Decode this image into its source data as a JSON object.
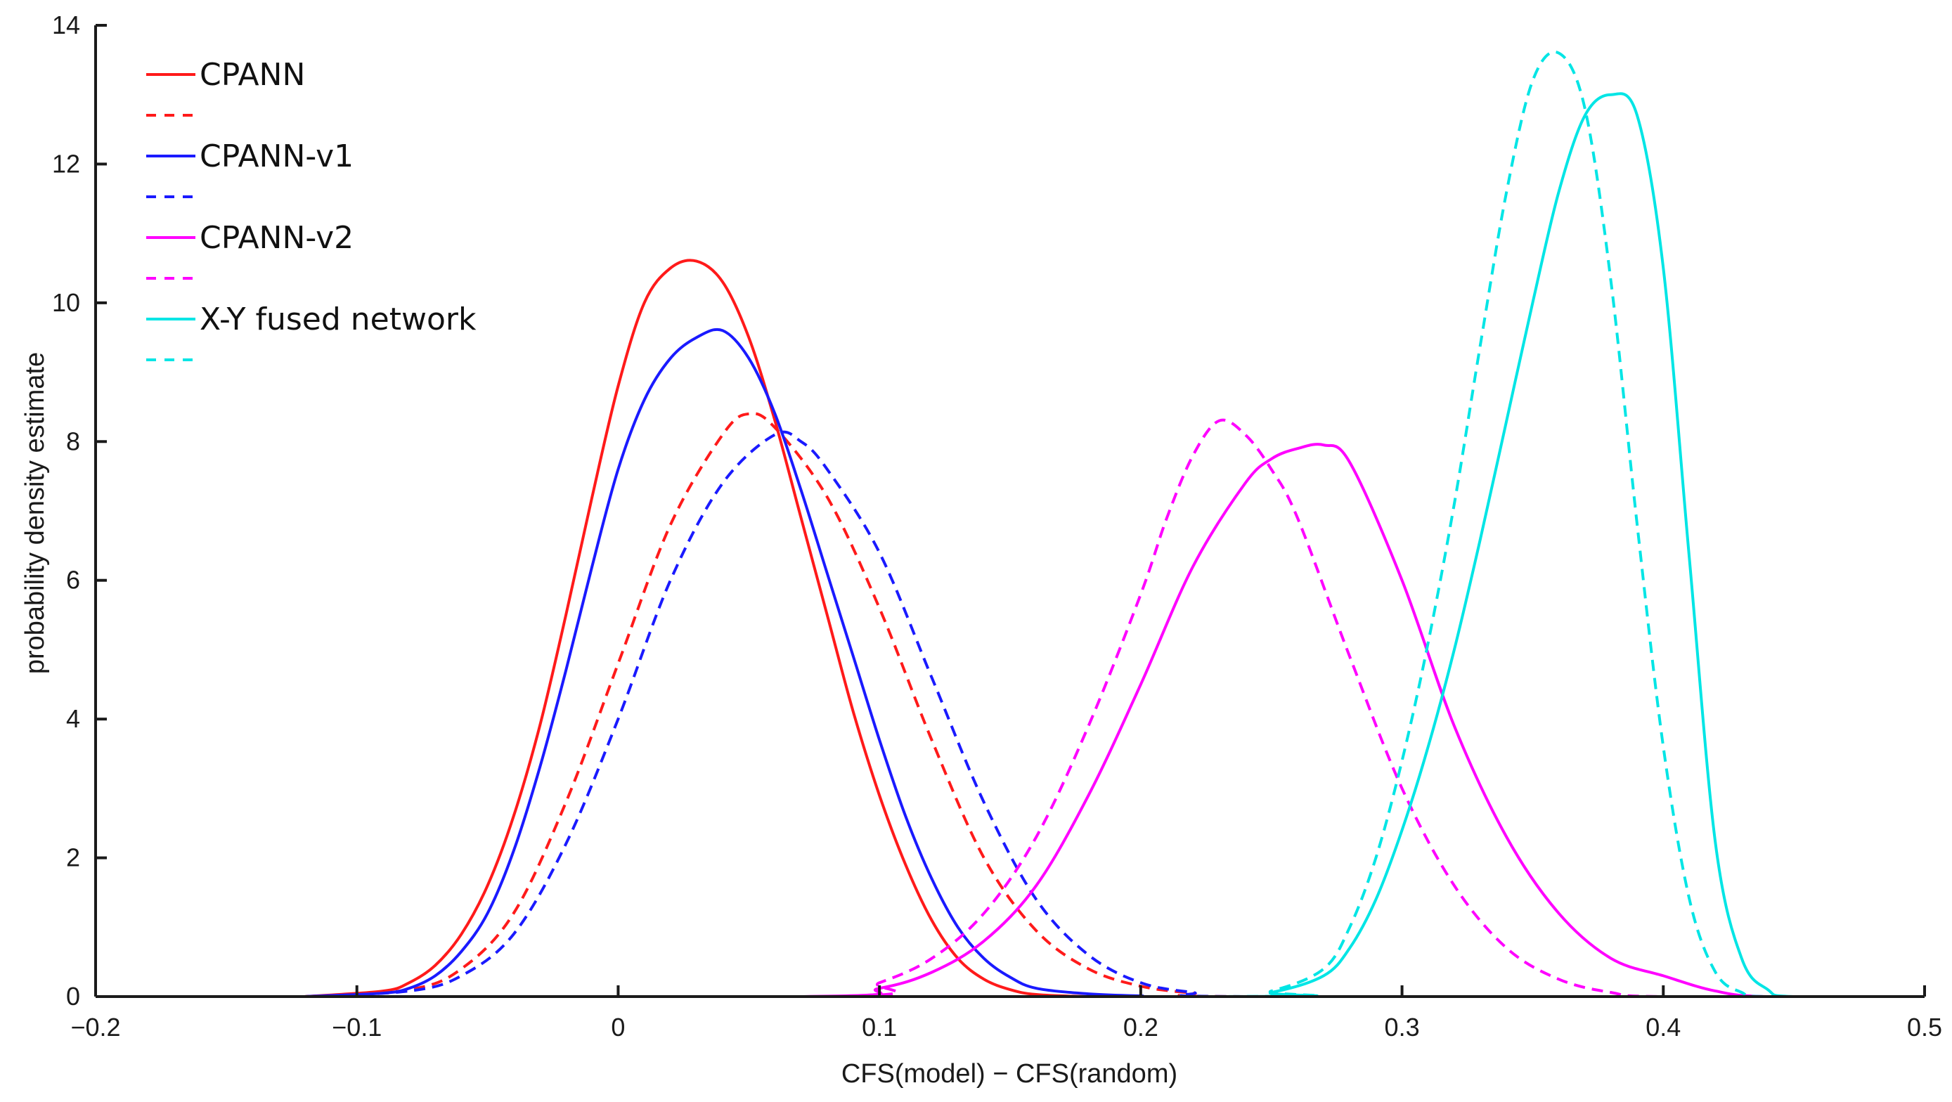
{
  "chart_data": {
    "type": "line",
    "title": "",
    "xlabel": "CFS(model) − CFS(random)",
    "ylabel": "probability density estimate",
    "xlim": [
      -0.2,
      0.5
    ],
    "ylim": [
      0,
      14
    ],
    "xticks": [
      -0.2,
      -0.1,
      0,
      0.1,
      0.2,
      0.3,
      0.4,
      0.5
    ],
    "xtick_labels": [
      "−0.2",
      "−0.1",
      "0",
      "0.1",
      "0.2",
      "0.3",
      "0.4",
      "0.5"
    ],
    "yticks": [
      0,
      2,
      4,
      6,
      8,
      10,
      12,
      14
    ],
    "ytick_labels": [
      "0",
      "2",
      "4",
      "6",
      "8",
      "10",
      "12",
      "14"
    ],
    "grid": false,
    "legend_position": "top-left",
    "series": [
      {
        "name": "CPANN",
        "color": "#ff1a1a",
        "style": "solid",
        "x": [
          -0.12,
          -0.09,
          -0.08,
          -0.07,
          -0.06,
          -0.05,
          -0.04,
          -0.03,
          -0.02,
          -0.01,
          0,
          0.01,
          0.02,
          0.03,
          0.04,
          0.05,
          0.06,
          0.07,
          0.08,
          0.09,
          0.1,
          0.11,
          0.12,
          0.13,
          0.14,
          0.15,
          0.16,
          0.18,
          0.2,
          0.5
        ],
        "y": [
          0,
          0.08,
          0.2,
          0.45,
          0.9,
          1.6,
          2.6,
          3.9,
          5.5,
          7.2,
          8.8,
          10.0,
          10.5,
          10.6,
          10.3,
          9.5,
          8.3,
          6.9,
          5.5,
          4.1,
          2.9,
          1.9,
          1.1,
          0.55,
          0.25,
          0.1,
          0.03,
          0,
          0,
          0
        ]
      },
      {
        "name": "",
        "color": "#ff1a1a",
        "style": "dashed",
        "x": [
          -0.12,
          -0.08,
          -0.06,
          -0.04,
          -0.02,
          0,
          0.02,
          0.04,
          0.05,
          0.06,
          0.08,
          0.1,
          0.12,
          0.14,
          0.16,
          0.18,
          0.2,
          0.22,
          0.24,
          0.5
        ],
        "y": [
          0,
          0.1,
          0.4,
          1.2,
          2.8,
          4.8,
          6.8,
          8.1,
          8.4,
          8.2,
          7.2,
          5.6,
          3.7,
          2.0,
          0.95,
          0.4,
          0.15,
          0.05,
          0,
          0
        ]
      },
      {
        "name": "CPANN-v1",
        "color": "#1a1aff",
        "style": "solid",
        "x": [
          -0.12,
          -0.09,
          -0.08,
          -0.07,
          -0.06,
          -0.05,
          -0.04,
          -0.03,
          -0.02,
          -0.01,
          0,
          0.01,
          0.02,
          0.03,
          0.04,
          0.05,
          0.06,
          0.07,
          0.08,
          0.09,
          0.1,
          0.11,
          0.12,
          0.13,
          0.14,
          0.15,
          0.16,
          0.18,
          0.2,
          0.22,
          0.5
        ],
        "y": [
          0,
          0.05,
          0.12,
          0.3,
          0.65,
          1.2,
          2.1,
          3.3,
          4.7,
          6.2,
          7.6,
          8.6,
          9.2,
          9.5,
          9.6,
          9.2,
          8.4,
          7.3,
          6.1,
          4.9,
          3.7,
          2.6,
          1.7,
          1.0,
          0.55,
          0.28,
          0.12,
          0.04,
          0.01,
          0,
          0
        ]
      },
      {
        "name": "",
        "color": "#1a1aff",
        "style": "dashed",
        "x": [
          -0.12,
          -0.08,
          -0.06,
          -0.04,
          -0.02,
          0,
          0.02,
          0.04,
          0.06,
          0.07,
          0.08,
          0.1,
          0.12,
          0.14,
          0.16,
          0.18,
          0.2,
          0.22,
          0.24,
          0.5
        ],
        "y": [
          0,
          0.08,
          0.3,
          0.9,
          2.2,
          4.0,
          6.0,
          7.4,
          8.1,
          8.0,
          7.6,
          6.4,
          4.6,
          2.8,
          1.4,
          0.6,
          0.2,
          0.06,
          0,
          0
        ]
      },
      {
        "name": "CPANN-v2",
        "color": "#ff00ff",
        "style": "solid",
        "x": [
          -0.2,
          0.07,
          0.1,
          0.12,
          0.14,
          0.16,
          0.18,
          0.2,
          0.22,
          0.24,
          0.25,
          0.26,
          0.27,
          0.28,
          0.3,
          0.32,
          0.34,
          0.36,
          0.38,
          0.4,
          0.42,
          0.44,
          0.5
        ],
        "y": [
          0,
          0,
          0.12,
          0.35,
          0.8,
          1.6,
          2.9,
          4.5,
          6.2,
          7.4,
          7.75,
          7.9,
          7.95,
          7.7,
          6.0,
          3.9,
          2.3,
          1.2,
          0.55,
          0.3,
          0.08,
          0,
          0
        ]
      },
      {
        "name": "",
        "color": "#ff00ff",
        "style": "dashed",
        "x": [
          -0.2,
          0.08,
          0.1,
          0.12,
          0.14,
          0.16,
          0.18,
          0.2,
          0.21,
          0.22,
          0.23,
          0.24,
          0.25,
          0.26,
          0.28,
          0.3,
          0.32,
          0.34,
          0.36,
          0.38,
          0.4,
          0.5
        ],
        "y": [
          0,
          0,
          0.2,
          0.55,
          1.2,
          2.3,
          3.9,
          5.8,
          6.9,
          7.8,
          8.3,
          8.1,
          7.6,
          6.9,
          4.9,
          3.0,
          1.6,
          0.7,
          0.25,
          0.06,
          0,
          0
        ]
      },
      {
        "name": "X-Y fused network",
        "color": "#00e5e5",
        "style": "solid",
        "x": [
          -0.2,
          0.23,
          0.25,
          0.27,
          0.28,
          0.29,
          0.3,
          0.31,
          0.32,
          0.33,
          0.34,
          0.35,
          0.36,
          0.37,
          0.38,
          0.39,
          0.4,
          0.41,
          0.42,
          0.43,
          0.44,
          0.45,
          0.5
        ],
        "y": [
          0,
          0,
          0.06,
          0.3,
          0.7,
          1.4,
          2.4,
          3.6,
          5.0,
          6.6,
          8.3,
          10.0,
          11.6,
          12.7,
          13.0,
          12.7,
          10.5,
          6.3,
          2.2,
          0.55,
          0.1,
          0,
          0
        ]
      },
      {
        "name": "",
        "color": "#00e5e5",
        "style": "dashed",
        "x": [
          -0.2,
          0.23,
          0.25,
          0.27,
          0.28,
          0.29,
          0.3,
          0.31,
          0.32,
          0.33,
          0.34,
          0.35,
          0.36,
          0.37,
          0.38,
          0.39,
          0.4,
          0.41,
          0.42,
          0.43,
          0.44,
          0.5
        ],
        "y": [
          0,
          0,
          0.08,
          0.4,
          1.0,
          2.0,
          3.4,
          5.1,
          7.1,
          9.4,
          11.6,
          13.2,
          13.6,
          12.8,
          10.3,
          6.8,
          3.6,
          1.4,
          0.35,
          0.06,
          0,
          0
        ]
      }
    ]
  }
}
